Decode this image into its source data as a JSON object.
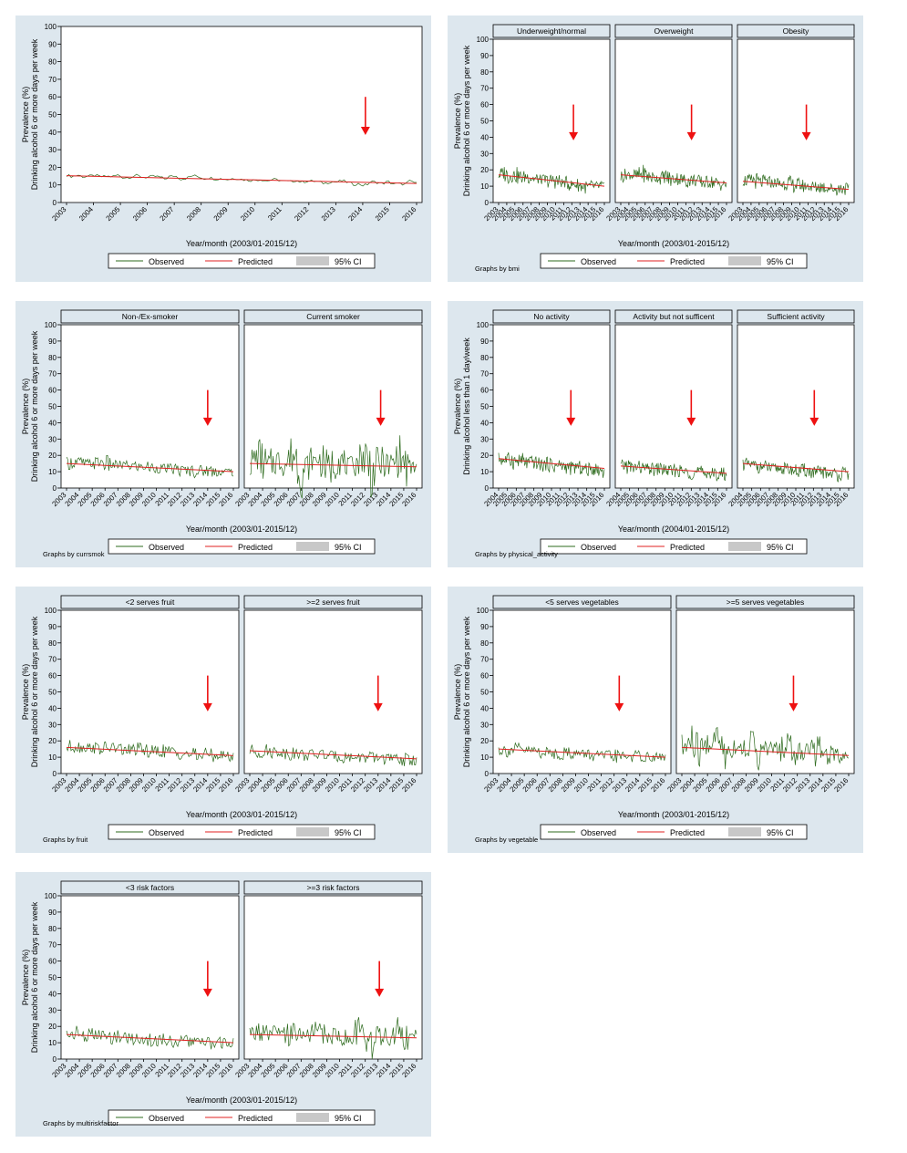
{
  "common": {
    "ylabel1": "Prevalence (%)",
    "ylabel2": "Drinking alcohol 6 or more days per week",
    "yticks": [
      0,
      10,
      20,
      30,
      40,
      50,
      60,
      70,
      80,
      90,
      100
    ],
    "legend": {
      "observed": "Observed",
      "predicted": "Predicted",
      "ci": "95% CI"
    },
    "colors": {
      "observed": "#2e6b1e",
      "predicted": "#e02020",
      "ci": "#c8c8c8",
      "arrow": "#ee1111",
      "strip": "#dde7ee"
    }
  },
  "chart_data": [
    {
      "type": "line",
      "id": "overall",
      "title": "",
      "xlabel": "Year/month (2003/01-2015/12)",
      "ylabel": "Prevalence (%) Drinking alcohol 6 or more days per week",
      "ylim": [
        0,
        100
      ],
      "note": "",
      "xticks": [
        "2003",
        "2004",
        "2005",
        "2006",
        "2007",
        "2008",
        "2009",
        "2010",
        "2011",
        "2012",
        "2013",
        "2014",
        "2015",
        "2016"
      ],
      "series": [
        {
          "name": "Observed",
          "values": [
            15.5,
            14.8,
            15.6,
            14.5,
            15.1,
            15.3,
            14.6,
            14.9,
            14.7,
            15.6,
            14.1,
            14.3,
            15.4,
            14.6,
            14.2,
            14.9,
            14.7,
            13.3,
            14.8,
            15.0,
            13.4,
            13.8,
            15.3,
            14.7,
            13.6,
            14.1,
            13.3,
            13.6,
            13.0,
            13.7,
            13.5,
            12.9,
            12.5,
            12.8,
            13.0,
            12.3,
            13.2,
            12.7,
            12.1,
            11.9,
            12.6,
            11.5,
            12.3,
            12.1,
            11.7,
            10.8,
            11.9,
            11.5,
            12.4,
            11.5,
            10.2,
            10.6,
            9.4,
            11.9,
            11.6,
            10.7,
            11.8,
            10.6,
            10.7,
            10.3,
            12.2,
            10.9
          ]
        },
        {
          "name": "Predicted",
          "values": [
            15.2,
            14.1,
            13.0,
            11.9,
            10.8
          ]
        }
      ],
      "arrow_x": 2014.1,
      "panels": [
        {
          "label": ""
        }
      ]
    },
    {
      "type": "line",
      "id": "bmi",
      "title": "",
      "xlabel": "Year/month (2003/01-2015/12)",
      "ylabel": "Prevalence (%) Drinking alcohol 6 or more days per week",
      "ylim": [
        0,
        100
      ],
      "note": "Graphs by bmi",
      "xticks": [
        "2003",
        "2004",
        "2005",
        "2006",
        "2007",
        "2008",
        "2009",
        "2010",
        "2011",
        "2012",
        "2013",
        "2014",
        "2015",
        "2016"
      ],
      "panels": [
        {
          "label": "Underweight/normal",
          "observed": [
            17,
            18,
            16,
            17,
            15,
            16,
            15,
            14,
            14,
            13,
            14,
            12,
            12,
            11,
            11,
            10,
            9,
            10,
            10,
            9
          ],
          "predicted": [
            17.0,
            10.0
          ],
          "arrow_x": 2012.2
        },
        {
          "label": "Overweight",
          "observed": [
            16,
            17,
            17,
            16,
            18,
            16,
            15,
            15,
            16,
            14,
            15,
            14,
            13,
            14,
            13,
            12,
            13,
            12,
            11,
            11
          ],
          "predicted": [
            17.0,
            12.0
          ],
          "arrow_x": 2011.7
        },
        {
          "label": "Obesity",
          "observed": [
            14,
            13,
            14,
            12,
            13,
            12,
            12,
            11,
            12,
            10,
            11,
            10,
            10,
            9,
            10,
            9,
            9,
            8,
            9,
            8
          ],
          "predicted": [
            13.0,
            8.0
          ],
          "arrow_x": 2010.8
        }
      ]
    },
    {
      "type": "line",
      "id": "currsmok",
      "title": "",
      "xlabel": "Year/month (2003/01-2015/12)",
      "ylabel": "Prevalence (%) Drinking alcohol 6 or more days per week",
      "ylim": [
        0,
        100
      ],
      "note": "Graphs by currsmok",
      "xticks": [
        "2003",
        "2004",
        "2005",
        "2006",
        "2007",
        "2008",
        "2009",
        "2010",
        "2011",
        "2012",
        "2013",
        "2014",
        "2015",
        "2016"
      ],
      "panels": [
        {
          "label": "Non-/Ex-smoker",
          "observed": [
            15,
            16,
            15,
            15,
            16,
            14,
            14,
            14,
            13,
            13,
            12,
            12,
            12,
            11,
            11,
            10,
            11,
            10,
            10,
            10
          ],
          "predicted": [
            15.0,
            10.0
          ],
          "arrow_x": 2014.0
        },
        {
          "label": "Current smoker",
          "observed": [
            15,
            20,
            12,
            18,
            14,
            22,
            10,
            16,
            18,
            11,
            19,
            13,
            15,
            21,
            9,
            17,
            12,
            20,
            11,
            14
          ],
          "predicted": [
            15.0,
            13.0
          ],
          "arrow_x": 2013.2
        }
      ]
    },
    {
      "type": "line",
      "id": "physical_activity",
      "title": "",
      "xlabel": "Year/month (2004/01-2015/12)",
      "ylabel": "Prevalence (%) Drinking alcohol less than 1 day/week",
      "ylim": [
        0,
        100
      ],
      "note": "Graphs by physical_activity",
      "xticks": [
        "2004",
        "2005",
        "2006",
        "2007",
        "2008",
        "2009",
        "2010",
        "2011",
        "2012",
        "2013",
        "2014",
        "2015",
        "2016"
      ],
      "panels": [
        {
          "label": "No activity",
          "observed": [
            18,
            17,
            18,
            16,
            17,
            15,
            16,
            15,
            14,
            15,
            13,
            14,
            13,
            12,
            13,
            12,
            11,
            12,
            11,
            10
          ],
          "predicted": [
            18.0,
            12.0
          ],
          "arrow_x": 2012.2
        },
        {
          "label": "Activity but not sufficent",
          "observed": [
            13,
            14,
            12,
            13,
            12,
            12,
            11,
            12,
            11,
            10,
            11,
            10,
            10,
            9,
            10,
            9,
            9,
            8,
            9,
            8
          ],
          "predicted": [
            13.5,
            9.0
          ],
          "arrow_x": 2012.0
        },
        {
          "label": "Sufficient activity",
          "observed": [
            15,
            14,
            14,
            13,
            13,
            12,
            12,
            12,
            11,
            11,
            10,
            11,
            10,
            9,
            10,
            9,
            9,
            8,
            9,
            8
          ],
          "predicted": [
            15.0,
            10.0
          ],
          "arrow_x": 2012.1
        }
      ]
    },
    {
      "type": "line",
      "id": "fruit",
      "title": "",
      "xlabel": "Year/month (2003/01-2015/12)",
      "ylabel": "Prevalence (%) Drinking alcohol 6 or more days per week",
      "ylim": [
        0,
        100
      ],
      "note": "Graphs by fruit",
      "xticks": [
        "2003",
        "2004",
        "2005",
        "2006",
        "2007",
        "2008",
        "2009",
        "2010",
        "2011",
        "2012",
        "2013",
        "2014",
        "2015",
        "2016"
      ],
      "panels": [
        {
          "label": "<2 serves fruit",
          "observed": [
            16,
            17,
            16,
            16,
            15,
            16,
            15,
            14,
            15,
            14,
            13,
            14,
            13,
            12,
            12,
            11,
            12,
            11,
            11,
            10
          ],
          "predicted": [
            16.0,
            11.0
          ],
          "arrow_x": 2014.0
        },
        {
          "label": ">=2 serves fruit",
          "observed": [
            14,
            13,
            14,
            13,
            13,
            12,
            12,
            11,
            12,
            11,
            11,
            10,
            10,
            10,
            9,
            10,
            9,
            9,
            8,
            9
          ],
          "predicted": [
            14.0,
            9.0
          ],
          "arrow_x": 2013.0
        }
      ]
    },
    {
      "type": "line",
      "id": "vegetable",
      "title": "",
      "xlabel": "Year/month (2003/01-2015/12)",
      "ylabel": "Prevalence (%) Drinking alcohol 6 or more days per week",
      "ylim": [
        0,
        100
      ],
      "note": "Graphs by vegetable",
      "xticks": [
        "2003",
        "2004",
        "2005",
        "2006",
        "2007",
        "2008",
        "2009",
        "2010",
        "2011",
        "2012",
        "2013",
        "2014",
        "2015",
        "2016"
      ],
      "panels": [
        {
          "label": "<5 serves vegetables",
          "observed": [
            15,
            14,
            15,
            14,
            14,
            13,
            13,
            12,
            13,
            12,
            12,
            11,
            11,
            11,
            10,
            11,
            10,
            10,
            10,
            10
          ],
          "predicted": [
            15.0,
            10.0
          ],
          "arrow_x": 2012.4
        },
        {
          "label": ">=5 serves vegetables",
          "observed": [
            14,
            20,
            12,
            18,
            22,
            13,
            17,
            15,
            19,
            11,
            16,
            14,
            18,
            12,
            15,
            17,
            10,
            13,
            11,
            12
          ],
          "predicted": [
            16.0,
            11.0
          ],
          "arrow_x": 2011.7
        }
      ]
    },
    {
      "type": "line",
      "id": "multiriskfactor",
      "title": "",
      "xlabel": "Year/month (2003/01-2015/12)",
      "ylabel": "Prevalence (%) Drinking alcohol 6 or more days per week",
      "ylim": [
        0,
        100
      ],
      "note": "Graphs by multiriskfactor",
      "xticks": [
        "2003",
        "2004",
        "2005",
        "2006",
        "2007",
        "2008",
        "2009",
        "2010",
        "2011",
        "2012",
        "2013",
        "2014",
        "2015",
        "2016"
      ],
      "panels": [
        {
          "label": "<3 risk factors",
          "observed": [
            15,
            16,
            14,
            15,
            14,
            13,
            14,
            13,
            12,
            12,
            11,
            12,
            11,
            10,
            11,
            10,
            10,
            9,
            10,
            10
          ],
          "predicted": [
            15.0,
            10.0
          ],
          "arrow_x": 2014.0
        },
        {
          "label": ">=3 risk factors",
          "observed": [
            15,
            17,
            14,
            16,
            13,
            17,
            15,
            14,
            18,
            13,
            16,
            12,
            15,
            20,
            11,
            15,
            13,
            18,
            12,
            14
          ],
          "predicted": [
            15.0,
            13.0
          ],
          "arrow_x": 2013.1
        }
      ]
    }
  ]
}
